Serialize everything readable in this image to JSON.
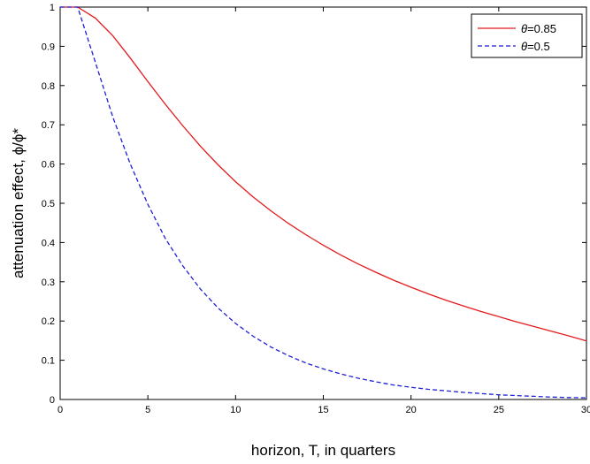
{
  "chart_data": {
    "type": "line",
    "xlabel": "horizon, T, in quarters",
    "ylabel": "attenuation effect, ϕ/ϕ*",
    "xlim": [
      0,
      30
    ],
    "ylim": [
      0,
      1
    ],
    "xticks": [
      "0",
      "5",
      "10",
      "15",
      "20",
      "25",
      "30"
    ],
    "yticks": [
      "0",
      "0.1",
      "0.2",
      "0.3",
      "0.4",
      "0.5",
      "0.6",
      "0.7",
      "0.8",
      "0.9",
      "1"
    ],
    "grid": false,
    "legend": {
      "position": "top-right",
      "entries": [
        {
          "prefix": "θ",
          "label": "=0.85"
        },
        {
          "prefix": "θ",
          "label": "=0.5"
        }
      ]
    },
    "series": [
      {
        "name": "θ=0.85",
        "color": "#e41a1c",
        "style": "solid",
        "x": [
          0,
          1,
          2,
          3,
          4,
          5,
          6,
          7,
          8,
          9,
          10,
          11,
          12,
          13,
          14,
          15,
          16,
          17,
          18,
          19,
          20,
          21,
          22,
          23,
          24,
          25,
          26,
          27,
          28,
          29,
          30
        ],
        "y": [
          1.0,
          1.0,
          0.972,
          0.927,
          0.87,
          0.81,
          0.752,
          0.697,
          0.645,
          0.598,
          0.555,
          0.516,
          0.481,
          0.449,
          0.42,
          0.393,
          0.368,
          0.345,
          0.324,
          0.304,
          0.286,
          0.269,
          0.253,
          0.238,
          0.224,
          0.211,
          0.198,
          0.186,
          0.174,
          0.162,
          0.149
        ]
      },
      {
        "name": "θ=0.5",
        "color": "#1f1fd6",
        "style": "dashed",
        "x": [
          0,
          1,
          2,
          3,
          4,
          5,
          6,
          7,
          8,
          9,
          10,
          11,
          12,
          13,
          14,
          15,
          16,
          17,
          18,
          19,
          20,
          21,
          22,
          23,
          24,
          25,
          26,
          27,
          28,
          29,
          30
        ],
        "y": [
          1.0,
          1.0,
          0.86,
          0.72,
          0.6,
          0.497,
          0.41,
          0.34,
          0.281,
          0.233,
          0.194,
          0.161,
          0.134,
          0.112,
          0.093,
          0.078,
          0.065,
          0.054,
          0.045,
          0.037,
          0.031,
          0.026,
          0.022,
          0.018,
          0.015,
          0.012,
          0.01,
          0.008,
          0.006,
          0.005,
          0.004
        ]
      }
    ]
  }
}
